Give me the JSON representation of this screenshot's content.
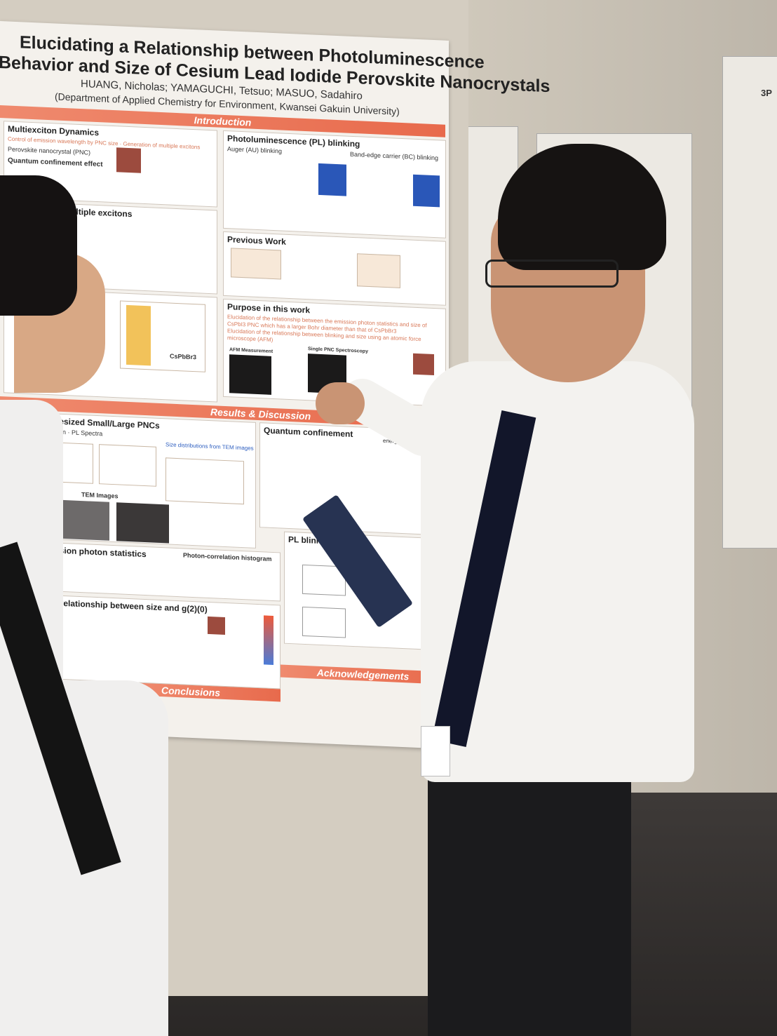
{
  "poster": {
    "title_line1": "Elucidating a Relationship between Photoluminescence",
    "title_line2": "Behavior and Size of Cesium Lead Iodide Perovskite Nanocrystals",
    "authors": "HUANG, Nicholas; YAMAGUCHI, Tetsuo; MASUO, Sadahiro",
    "affiliation": "(Department of Applied Chemistry for Environment, Kwansei Gakuin University)",
    "bars": {
      "introduction": "Introduction",
      "results": "Results & Discussion",
      "conclusions": "Conclusions",
      "acknowledgements": "Acknowledgements"
    },
    "sections": {
      "multiexciton": "Multiexciton Dynamics",
      "multiexciton_text": "Control of emission wavelength by PNC size · Generation of multiple excitons",
      "pnc": "Perovskite nanocrystal (PNC)",
      "quantum_confinement": "Quantum confinement effect",
      "dynamics_multiple": "Dynamics for multiple excitons",
      "pl_blinking": "Photoluminescence (PL) blinking",
      "auger": "Auger (AU) blinking",
      "band_edge": "Band-edge carrier (BC) blinking",
      "previous_work": "Previous Work",
      "purpose": "Purpose in this work",
      "purpose_text1": "Elucidation of the relationship between the emission photon statistics and size of CsPbI3 PNC which has a larger Bohr diameter than that of CsPbBr3",
      "purpose_text2": "Elucidation of the relationship between blinking and size using an atomic force microscope (AFM)",
      "afm": "AFM Measurement",
      "single_pnc": "Single PNC Spectroscopy",
      "synthesized": "Synthesized Small/Large PNCs",
      "absorption": "Absorption · PL Spectra",
      "size_dist": "Size distributions from TEM images",
      "tem": "TEM Images",
      "quantum_conf2": "Quantum confinement",
      "size_bandgap": "Size and Band-gap energy",
      "emission_stats": "Emission photon statistics",
      "photon_corr": "Photon-correlation histogram",
      "pl_blinking2": "PL blinking",
      "relationship": "The relationship between size and g(2)(0)",
      "cspbbr3": "CsPbBr3"
    }
  },
  "side_poster": {
    "label": "3P"
  },
  "colors": {
    "accent_bar": "#e86a4c",
    "poster_bg": "#f4f1ec"
  }
}
